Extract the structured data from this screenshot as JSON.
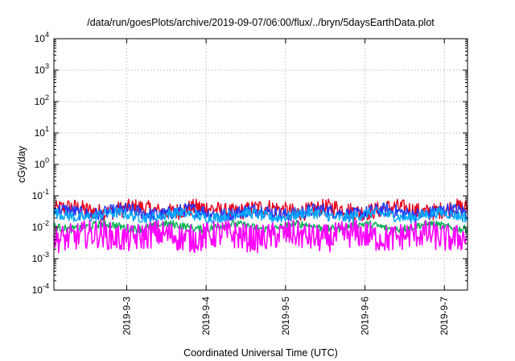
{
  "chart_data": {
    "type": "line",
    "title": "/data/run/goesPlots/archive/2019-09-07/06:00/flux/../bryn/5daysEarthData.plot",
    "xlabel": "Coordinated Universal Time (UTC)",
    "ylabel": "cGy/day",
    "yscale": "log",
    "ylim": [
      0.0001,
      10000
    ],
    "y_ticks": [
      {
        "value": 0.0001,
        "base": "10",
        "exp": "-4"
      },
      {
        "value": 0.001,
        "base": "10",
        "exp": "-3"
      },
      {
        "value": 0.01,
        "base": "10",
        "exp": "-2"
      },
      {
        "value": 0.1,
        "base": "10",
        "exp": "-1"
      },
      {
        "value": 1,
        "base": "10",
        "exp": "0"
      },
      {
        "value": 10,
        "base": "10",
        "exp": "1"
      },
      {
        "value": 100,
        "base": "10",
        "exp": "2"
      },
      {
        "value": 1000,
        "base": "10",
        "exp": "3"
      },
      {
        "value": 10000,
        "base": "10",
        "exp": "4"
      }
    ],
    "xlim": [
      "2019-09-02 02:00",
      "2019-09-07 07:00"
    ],
    "x_ticks": [
      "2019-9-3",
      "2019-9-4",
      "2019-9-5",
      "2019-9-6",
      "2019-9-7"
    ],
    "grid": true,
    "legend": "none",
    "series": [
      {
        "color": "#e8001c",
        "level": 0.036,
        "spread": 0.55
      },
      {
        "color": "#1f3bff",
        "level": 0.03,
        "spread": 0.45
      },
      {
        "color": "#00a8ff",
        "level": 0.024,
        "spread": 0.35
      },
      {
        "color": "#00b050",
        "level": 0.0105,
        "spread": 0.25
      },
      {
        "color": "#ff00ff",
        "level": 0.0052,
        "spread": 0.9
      }
    ]
  }
}
